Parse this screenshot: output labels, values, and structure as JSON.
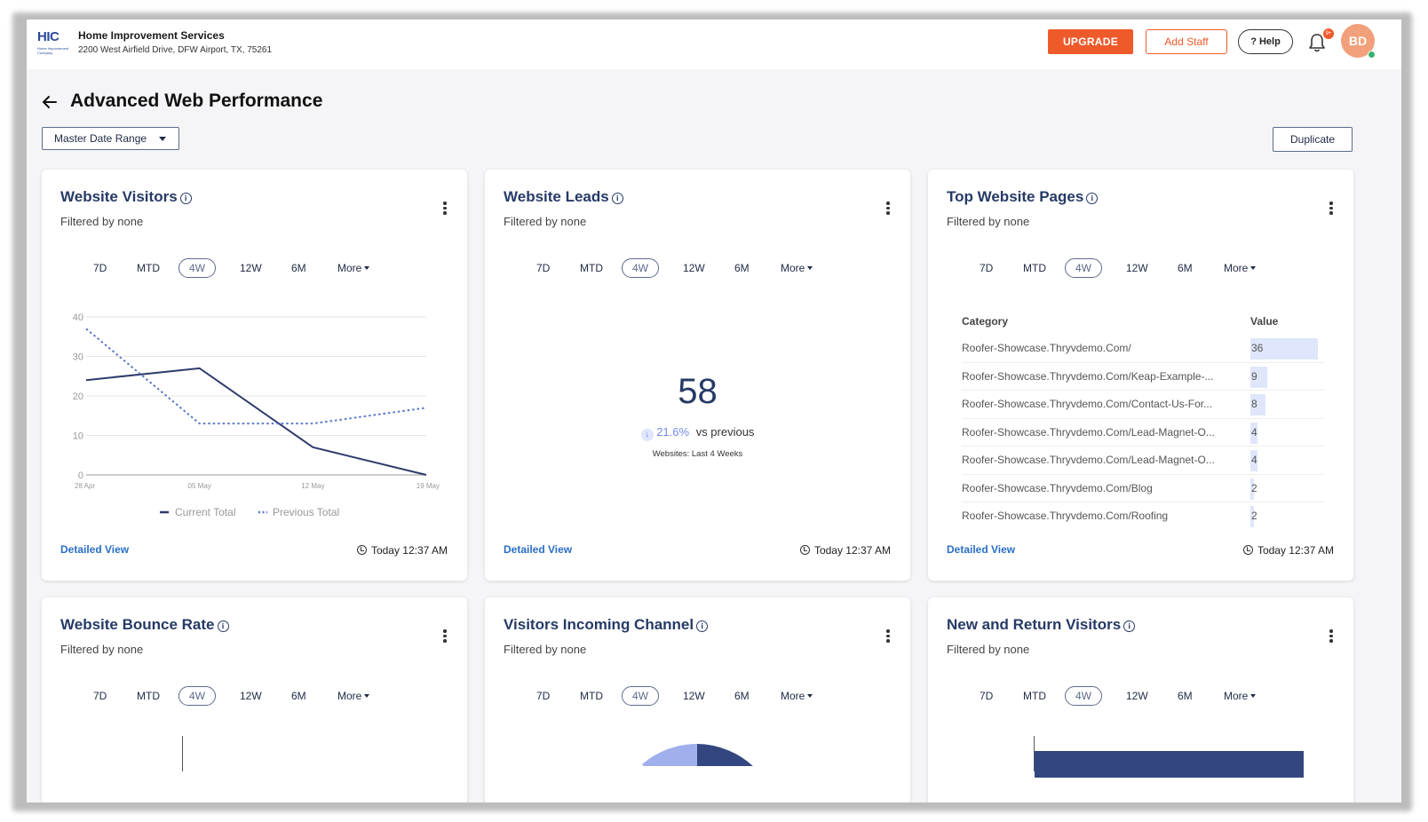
{
  "header": {
    "logo_text": "HIC",
    "logo_subtext": "Home Improvement Company",
    "company_name": "Home Improvement Services",
    "company_address": "2200 West Airfield Drive, DFW Airport, TX, 75261",
    "upgrade_label": "UPGRADE",
    "add_staff_label": "Add Staff",
    "help_label": "? Help",
    "notification_badge": "9+",
    "avatar_initials": "BD"
  },
  "page": {
    "title": "Advanced Web Performance",
    "date_range_label": "Master Date Range",
    "duplicate_label": "Duplicate"
  },
  "time_ranges": [
    "7D",
    "MTD",
    "4W",
    "12W",
    "6M",
    "More"
  ],
  "active_range": "4W",
  "cards": {
    "visitors": {
      "title": "Website Visitors",
      "subtitle": "Filtered by none",
      "detailed_label": "Detailed View",
      "timestamp": "Today 12:37 AM"
    },
    "leads": {
      "title": "Website Leads",
      "subtitle": "Filtered by none",
      "value": "58",
      "delta_icon": "↓",
      "delta_percent": "21.6%",
      "delta_text": "vs previous",
      "note": "Websites: Last 4 Weeks",
      "detailed_label": "Detailed View",
      "timestamp": "Today 12:37 AM"
    },
    "pages": {
      "title": "Top Website Pages",
      "subtitle": "Filtered by none",
      "col_category": "Category",
      "col_value": "Value",
      "rows": [
        {
          "category": "Roofer-Showcase.Thryvdemo.Com/",
          "value": 36
        },
        {
          "category": "Roofer-Showcase.Thryvdemo.Com/Keap-Example-...",
          "value": 9
        },
        {
          "category": "Roofer-Showcase.Thryvdemo.Com/Contact-Us-For...",
          "value": 8
        },
        {
          "category": "Roofer-Showcase.Thryvdemo.Com/Lead-Magnet-O...",
          "value": 4
        },
        {
          "category": "Roofer-Showcase.Thryvdemo.Com/Lead-Magnet-O...",
          "value": 4
        },
        {
          "category": "Roofer-Showcase.Thryvdemo.Com/Blog",
          "value": 2
        },
        {
          "category": "Roofer-Showcase.Thryvdemo.Com/Roofing",
          "value": 2
        }
      ],
      "detailed_label": "Detailed View",
      "timestamp": "Today 12:37 AM"
    },
    "bounce": {
      "title": "Website Bounce Rate",
      "subtitle": "Filtered by none"
    },
    "channel": {
      "title": "Visitors Incoming Channel",
      "subtitle": "Filtered by none"
    },
    "newreturn": {
      "title": "New and Return Visitors",
      "subtitle": "Filtered by none"
    }
  },
  "colors": {
    "accent": "#ef5a2b",
    "navy": "#263a66",
    "series_current": "#2f3b6b",
    "series_previous": "#5a78c9",
    "bar_fill": "#dfe6fb",
    "pie_light": "#9fb0ec",
    "pie_dark": "#34467f"
  },
  "chart_data": [
    {
      "type": "line",
      "title": "Website Visitors",
      "categories": [
        "28 Apr",
        "05 May",
        "12 May",
        "19 May"
      ],
      "ylim": [
        0,
        40
      ],
      "yticks": [
        0,
        10,
        20,
        30,
        40
      ],
      "series": [
        {
          "name": "Current Total",
          "style": "solid",
          "values": [
            24,
            27,
            7,
            0
          ]
        },
        {
          "name": "Previous Total",
          "style": "dotted",
          "values": [
            37,
            13,
            13,
            17
          ]
        }
      ],
      "legend": "bottom"
    }
  ]
}
